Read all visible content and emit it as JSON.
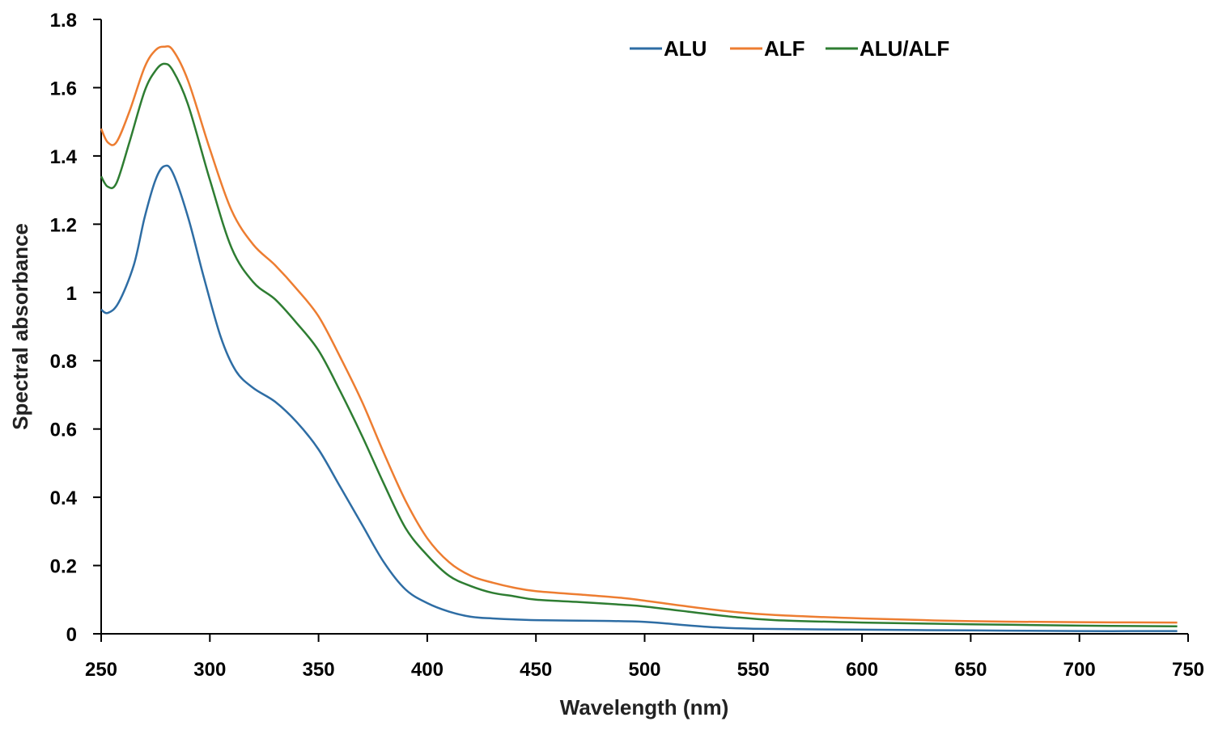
{
  "chart_data": {
    "type": "line",
    "title": "",
    "xlabel": "Wavelength (nm)",
    "ylabel": "Spectral absorbance",
    "xlim": [
      250,
      750
    ],
    "ylim": [
      0,
      1.8
    ],
    "x_ticks": [
      "250",
      "300",
      "350",
      "400",
      "450",
      "500",
      "550",
      "600",
      "650",
      "700",
      "750"
    ],
    "y_ticks": [
      "0",
      "0.2",
      "0.4",
      "0.6",
      "0.8",
      "1",
      "1.2",
      "1.4",
      "1.6",
      "1.8"
    ],
    "grid": false,
    "legend_position": "top-center",
    "series": [
      {
        "name": "ALU",
        "color": "#2e6da4",
        "points": [
          [
            250,
            0.95
          ],
          [
            253,
            0.94
          ],
          [
            258,
            0.97
          ],
          [
            265,
            1.08
          ],
          [
            270,
            1.22
          ],
          [
            275,
            1.33
          ],
          [
            279,
            1.37
          ],
          [
            283,
            1.35
          ],
          [
            290,
            1.22
          ],
          [
            297,
            1.05
          ],
          [
            305,
            0.87
          ],
          [
            312,
            0.77
          ],
          [
            320,
            0.72
          ],
          [
            330,
            0.68
          ],
          [
            340,
            0.62
          ],
          [
            350,
            0.54
          ],
          [
            360,
            0.43
          ],
          [
            370,
            0.32
          ],
          [
            380,
            0.21
          ],
          [
            390,
            0.13
          ],
          [
            400,
            0.09
          ],
          [
            410,
            0.065
          ],
          [
            420,
            0.05
          ],
          [
            430,
            0.045
          ],
          [
            450,
            0.04
          ],
          [
            480,
            0.038
          ],
          [
            500,
            0.035
          ],
          [
            510,
            0.03
          ],
          [
            530,
            0.02
          ],
          [
            550,
            0.015
          ],
          [
            600,
            0.012
          ],
          [
            650,
            0.01
          ],
          [
            700,
            0.008
          ],
          [
            745,
            0.008
          ]
        ]
      },
      {
        "name": "ALF",
        "color": "#ed7d31",
        "points": [
          [
            250,
            1.48
          ],
          [
            253,
            1.44
          ],
          [
            257,
            1.44
          ],
          [
            263,
            1.53
          ],
          [
            270,
            1.66
          ],
          [
            275,
            1.71
          ],
          [
            279,
            1.72
          ],
          [
            283,
            1.71
          ],
          [
            290,
            1.62
          ],
          [
            300,
            1.42
          ],
          [
            310,
            1.24
          ],
          [
            320,
            1.14
          ],
          [
            330,
            1.08
          ],
          [
            340,
            1.01
          ],
          [
            350,
            0.93
          ],
          [
            360,
            0.81
          ],
          [
            370,
            0.68
          ],
          [
            380,
            0.53
          ],
          [
            390,
            0.39
          ],
          [
            400,
            0.28
          ],
          [
            410,
            0.21
          ],
          [
            420,
            0.17
          ],
          [
            430,
            0.15
          ],
          [
            440,
            0.135
          ],
          [
            450,
            0.125
          ],
          [
            470,
            0.115
          ],
          [
            490,
            0.105
          ],
          [
            500,
            0.097
          ],
          [
            520,
            0.08
          ],
          [
            540,
            0.065
          ],
          [
            560,
            0.055
          ],
          [
            600,
            0.045
          ],
          [
            650,
            0.037
          ],
          [
            700,
            0.034
          ],
          [
            745,
            0.033
          ]
        ]
      },
      {
        "name": "ALU/ALF",
        "color": "#2e7d32",
        "points": [
          [
            250,
            1.34
          ],
          [
            253,
            1.31
          ],
          [
            257,
            1.32
          ],
          [
            263,
            1.44
          ],
          [
            270,
            1.59
          ],
          [
            275,
            1.65
          ],
          [
            279,
            1.67
          ],
          [
            283,
            1.65
          ],
          [
            290,
            1.55
          ],
          [
            300,
            1.33
          ],
          [
            310,
            1.13
          ],
          [
            320,
            1.03
          ],
          [
            330,
            0.98
          ],
          [
            340,
            0.91
          ],
          [
            350,
            0.83
          ],
          [
            360,
            0.71
          ],
          [
            370,
            0.58
          ],
          [
            380,
            0.44
          ],
          [
            390,
            0.31
          ],
          [
            400,
            0.23
          ],
          [
            410,
            0.17
          ],
          [
            420,
            0.14
          ],
          [
            430,
            0.12
          ],
          [
            440,
            0.11
          ],
          [
            450,
            0.1
          ],
          [
            470,
            0.093
          ],
          [
            490,
            0.085
          ],
          [
            500,
            0.08
          ],
          [
            520,
            0.065
          ],
          [
            540,
            0.05
          ],
          [
            560,
            0.04
          ],
          [
            600,
            0.033
          ],
          [
            650,
            0.028
          ],
          [
            700,
            0.024
          ],
          [
            745,
            0.022
          ]
        ]
      }
    ]
  }
}
